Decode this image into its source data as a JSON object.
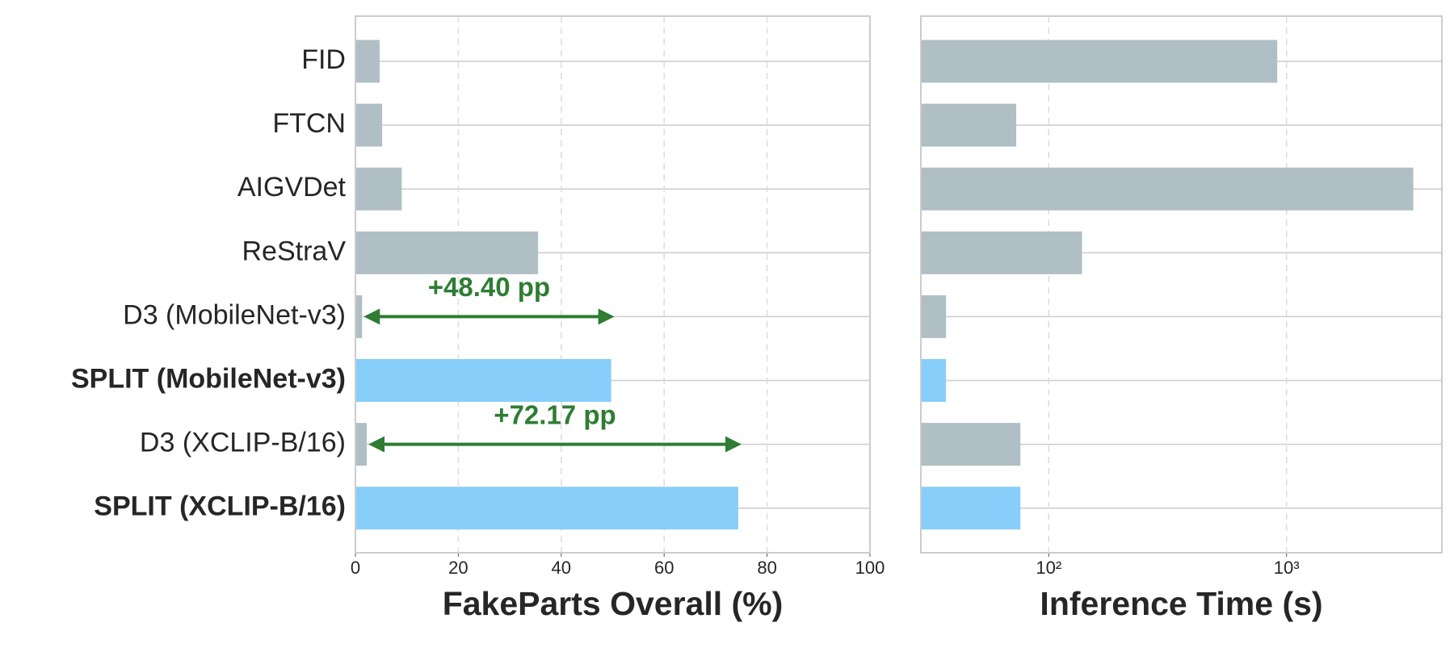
{
  "chart_data": [
    {
      "type": "barh",
      "xlabel": "FakeParts Overall (%)",
      "categories": [
        "FID",
        "FTCN",
        "AIGVDet",
        "ReStraV",
        "D3 (MobileNet-v3)",
        "SPLIT (MobileNet-v3)",
        "D3 (XCLIP-B/16)",
        "SPLIT (XCLIP-B/16)"
      ],
      "bold_labels": [
        false,
        false,
        false,
        false,
        false,
        true,
        false,
        true
      ],
      "values": [
        4.7,
        5.2,
        9.0,
        35.5,
        1.3,
        49.7,
        2.2,
        74.4
      ],
      "colors": [
        "#b0bec5",
        "#b0bec5",
        "#b0bec5",
        "#b0bec5",
        "#b0bec5",
        "#87cefa",
        "#b0bec5",
        "#87cefa"
      ],
      "xlim": [
        0,
        100
      ],
      "xticks": [
        0,
        20,
        40,
        60,
        80,
        100
      ],
      "grid": true,
      "log": false,
      "annotations": [
        {
          "text": "+48.40 pp",
          "from": 4,
          "to": 5,
          "color": "#2e7d32"
        },
        {
          "text": "+72.17 pp",
          "from": 6,
          "to": 7,
          "color": "#2e7d32"
        }
      ]
    },
    {
      "type": "barh",
      "xlabel": "Inference Time (s)",
      "values": [
        914,
        73,
        3411,
        138,
        37,
        37,
        76,
        76
      ],
      "colors": [
        "#b0bec5",
        "#b0bec5",
        "#b0bec5",
        "#b0bec5",
        "#b0bec5",
        "#87cefa",
        "#b0bec5",
        "#87cefa"
      ],
      "xlim": [
        29,
        4500
      ],
      "xticks": [
        {
          "value": 100,
          "label": "10²"
        },
        {
          "value": 1000,
          "label": "10³"
        }
      ],
      "grid": true,
      "log": true
    }
  ]
}
